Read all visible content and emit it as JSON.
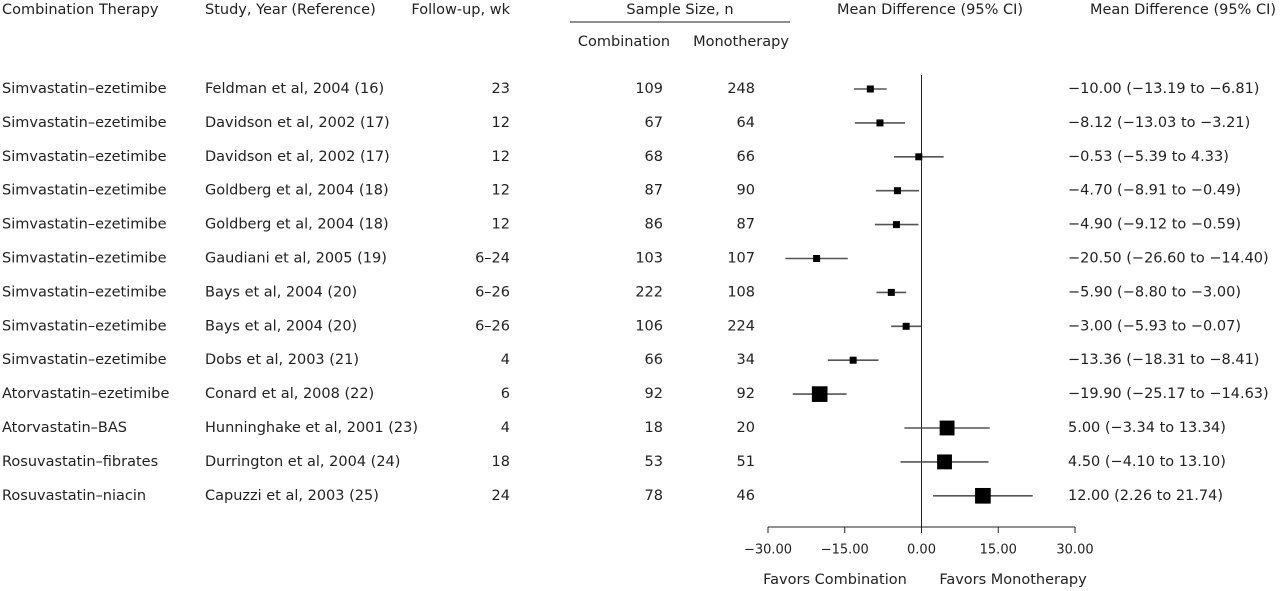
{
  "chart_data": {
    "type": "forest",
    "headers": {
      "therapy": "Combination Therapy",
      "study": "Study, Year (Reference)",
      "followup": "Follow-up, wk",
      "sample_size": "Sample Size, n",
      "combination": "Combination",
      "monotherapy": "Monotherapy",
      "plot": "Mean Difference (95% CI)",
      "estimate": "Mean Difference (95% CI)"
    },
    "therapies": [
      "Simvastatin–ezetimibe",
      "Simvastatin–ezetimibe",
      "Simvastatin–ezetimibe",
      "Simvastatin–ezetimibe",
      "Simvastatin–ezetimibe",
      "Simvastatin–ezetimibe",
      "Simvastatin–ezetimibe",
      "Simvastatin–ezetimibe",
      "Simvastatin–ezetimibe",
      "Atorvastatin–ezetimibe",
      "Atorvastatin–BAS",
      "Rosuvastatin–fibrates",
      "Rosuvastatin–niacin"
    ],
    "categories": [
      "Feldman et al, 2004 (16)",
      "Davidson et al, 2002 (17)",
      "Davidson et al, 2002 (17)",
      "Goldberg et al, 2004 (18)",
      "Goldberg et al, 2004 (18)",
      "Gaudiani et al, 2005 (19)",
      "Bays et al, 2004 (20)",
      "Bays et al, 2004 (20)",
      "Dobs et al, 2003 (21)",
      "Conard et al, 2008 (22)",
      "Hunninghake et al, 2001 (23)",
      "Durrington et al, 2004 (24)",
      "Capuzzi et al, 2003 (25)"
    ],
    "followup": [
      "23",
      "12",
      "12",
      "12",
      "12",
      "6–24",
      "6–26",
      "6–26",
      "4",
      "6",
      "4",
      "18",
      "24"
    ],
    "n_combination": [
      109,
      67,
      68,
      87,
      86,
      103,
      222,
      106,
      66,
      92,
      18,
      53,
      78
    ],
    "n_monotherapy": [
      248,
      64,
      66,
      90,
      87,
      107,
      108,
      224,
      34,
      92,
      20,
      51,
      46
    ],
    "values": [
      -10.0,
      -8.12,
      -0.53,
      -4.7,
      -4.9,
      -20.5,
      -5.9,
      -3.0,
      -13.36,
      -19.9,
      5.0,
      4.5,
      12.0
    ],
    "ci_low": [
      -13.19,
      -13.03,
      -5.39,
      -8.91,
      -9.12,
      -26.6,
      -8.8,
      -5.93,
      -18.31,
      -25.17,
      -3.34,
      -4.1,
      2.26
    ],
    "ci_high": [
      -6.81,
      -3.21,
      4.33,
      -0.49,
      -0.59,
      -14.4,
      -3.0,
      -0.07,
      -8.41,
      -14.63,
      13.34,
      13.1,
      21.74
    ],
    "value_labels": [
      "−10.00 (−13.19 to −6.81)",
      "−8.12 (−13.03 to −3.21)",
      "−0.53 (−5.39 to 4.33)",
      "−4.70 (−8.91 to −0.49)",
      "−4.90 (−9.12 to −0.59)",
      "−20.50 (−26.60 to −14.40)",
      "−5.90 (−8.80 to −3.00)",
      "−3.00 (−5.93 to −0.07)",
      "−13.36 (−18.31 to −8.41)",
      "−19.90 (−25.17 to −14.63)",
      "5.00 (−3.34 to 13.34)",
      "4.50 (−4.10 to 13.10)",
      "12.00 (2.26 to 21.74)"
    ],
    "weights": [
      1,
      1,
      1,
      1,
      1,
      1,
      1,
      1,
      1,
      5,
      4.5,
      4.5,
      5
    ],
    "color": "#000000",
    "ci_color": "#555555",
    "xlim": [
      -30,
      30
    ],
    "xticks": [
      {
        "value": -30,
        "label": "−30.00"
      },
      {
        "value": -15,
        "label": "−15.00"
      },
      {
        "value": 0,
        "label": "0.00"
      },
      {
        "value": 15,
        "label": "15.00"
      },
      {
        "value": 30,
        "label": "30.00"
      }
    ],
    "xlabel_left": "Favors Combination",
    "xlabel_right": "Favors Monotherapy"
  }
}
